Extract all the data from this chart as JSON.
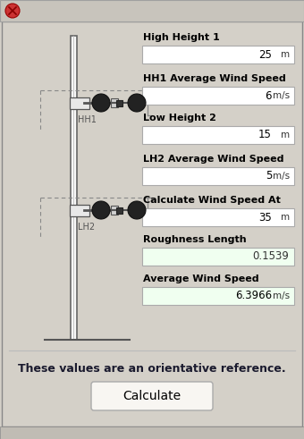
{
  "bg_color": "#d4d0c8",
  "title_bar_color": "#c8c4bc",
  "close_btn_color": "#cc3333",
  "fields": [
    {
      "label": "High Height 1",
      "value": "25",
      "unit": "m",
      "bg": "#ffffff"
    },
    {
      "label": "HH1 Average Wind Speed",
      "value": "6",
      "unit": "m/s",
      "bg": "#ffffff"
    },
    {
      "label": "Low Height 2",
      "value": "15",
      "unit": "m",
      "bg": "#ffffff"
    },
    {
      "label": "LH2 Average Wind Speed",
      "value": "5",
      "unit": "m/s",
      "bg": "#ffffff"
    },
    {
      "label": "Calculate Wind Speed At",
      "value": "35",
      "unit": "m",
      "bg": "#ffffff"
    },
    {
      "label": "Roughness Length",
      "value": "0.1539",
      "unit": "",
      "bg": "#f0fff0"
    },
    {
      "label": "Average Wind Speed",
      "value": "6.3966",
      "unit": "m/s",
      "bg": "#f0fff0"
    }
  ],
  "note_text": "These values are an orientative reference.",
  "button_label": "Calculate",
  "label_fontsize": 8.0,
  "value_fontsize": 8.5,
  "note_fontsize": 9.0
}
